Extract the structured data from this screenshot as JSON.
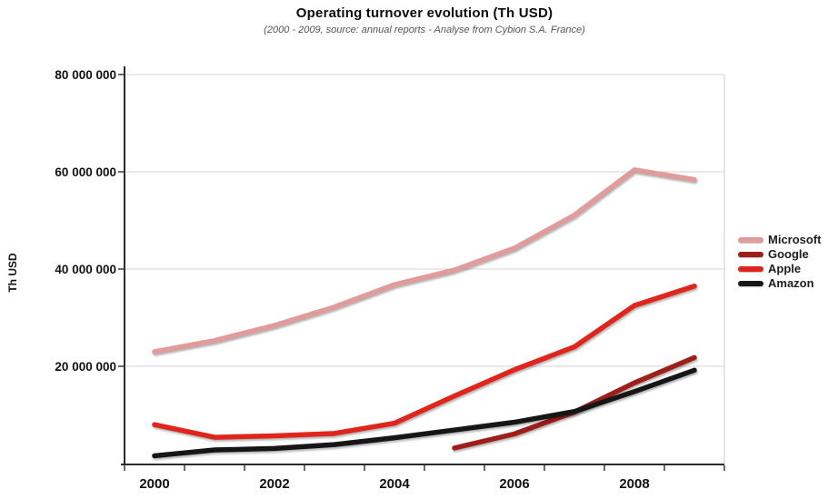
{
  "header": {
    "title": "Operating turnover evolution (Th USD)",
    "subtitle": "(2000 - 2009, source: annual reports - Analyse from Cybion S.A. France)"
  },
  "chart_data": {
    "type": "line",
    "title": "Operating turnover evolution (Th USD)",
    "subtitle": "(2000 - 2009, source: annual reports - Analyse from Cybion S.A. France)",
    "xlabel": "",
    "ylabel": "Th USD",
    "x": [
      2000,
      2001,
      2002,
      2003,
      2004,
      2005,
      2006,
      2007,
      2008,
      2009
    ],
    "xtick_labels": [
      "2000",
      "2002",
      "2004",
      "2006",
      "2008"
    ],
    "ylim": [
      0,
      80000000
    ],
    "ytick_values": [
      20000000,
      40000000,
      60000000,
      80000000
    ],
    "ytick_labels": [
      "20 000 000",
      "40 000 000",
      "60 000 000",
      "80 000 000"
    ],
    "grid": true,
    "legend_position": "right",
    "series": [
      {
        "name": "Microsoft",
        "color": "#E29B9B",
        "values": [
          23000000,
          25300000,
          28400000,
          32200000,
          36800000,
          39800000,
          44300000,
          51100000,
          60400000,
          58400000
        ]
      },
      {
        "name": "Google",
        "color": "#9E1F1A",
        "values": [
          null,
          null,
          null,
          null,
          null,
          3200000,
          6100000,
          10600000,
          16600000,
          21800000
        ]
      },
      {
        "name": "Apple",
        "color": "#E0261C",
        "values": [
          8000000,
          5400000,
          5700000,
          6200000,
          8300000,
          13900000,
          19300000,
          24000000,
          32500000,
          36500000
        ]
      },
      {
        "name": "Amazon",
        "color": "#161616",
        "values": [
          1600000,
          2800000,
          3100000,
          3900000,
          5300000,
          6900000,
          8500000,
          10700000,
          14800000,
          19200000
        ]
      }
    ]
  }
}
